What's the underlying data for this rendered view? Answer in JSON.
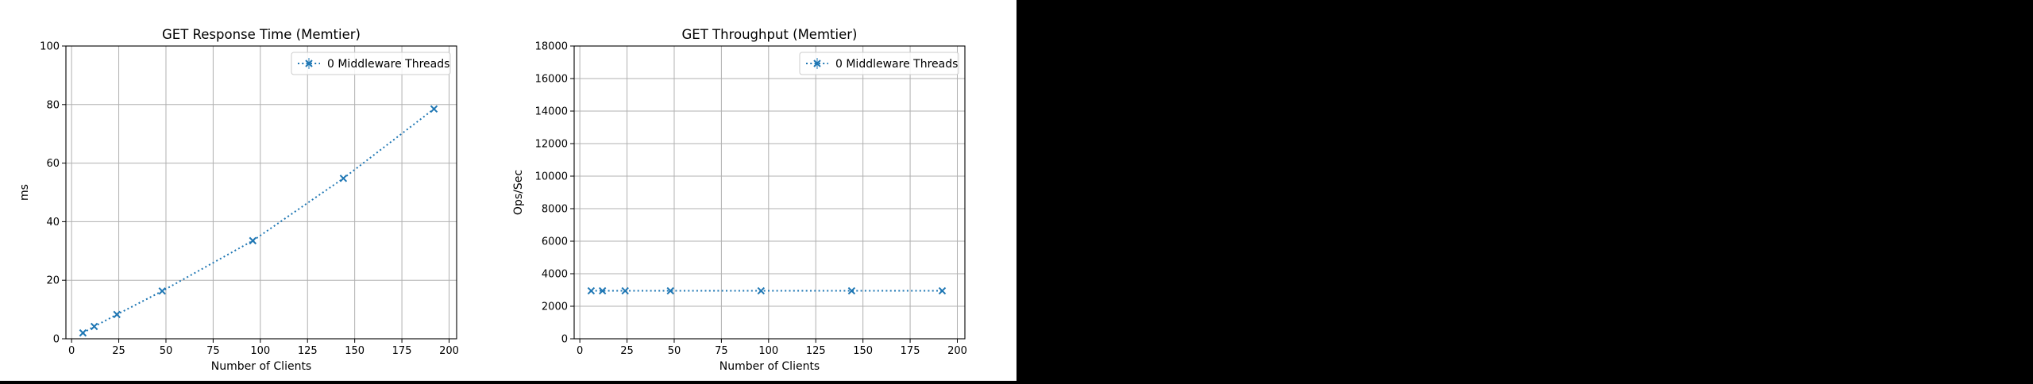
{
  "chart_data": [
    {
      "type": "line",
      "title": "GET Response Time (Memtier)",
      "xlabel": "Number of Clients",
      "ylabel": "ms",
      "xlim": [
        -3,
        204
      ],
      "ylim": [
        0,
        100
      ],
      "xticks": [
        0,
        25,
        50,
        75,
        100,
        125,
        150,
        175,
        200
      ],
      "yticks": [
        0,
        20,
        40,
        60,
        80,
        100
      ],
      "grid": true,
      "legend_position": "upper right",
      "series": [
        {
          "name": "0 Middleware Threads",
          "color": "#1f77b4",
          "marker": "x",
          "linestyle": "dotted",
          "x": [
            6,
            12,
            24,
            48,
            96,
            144,
            192
          ],
          "y": [
            2.0,
            4.2,
            8.3,
            16.3,
            33.5,
            54.8,
            78.5
          ]
        }
      ]
    },
    {
      "type": "line",
      "title": "GET Throughput (Memtier)",
      "xlabel": "Number of Clients",
      "ylabel": "Ops/Sec",
      "xlim": [
        -3,
        204
      ],
      "ylim": [
        0,
        18000
      ],
      "xticks": [
        0,
        25,
        50,
        75,
        100,
        125,
        150,
        175,
        200
      ],
      "yticks": [
        0,
        2000,
        4000,
        6000,
        8000,
        10000,
        12000,
        14000,
        16000,
        18000
      ],
      "grid": true,
      "legend_position": "upper right",
      "series": [
        {
          "name": "0 Middleware Threads",
          "color": "#1f77b4",
          "marker": "x",
          "linestyle": "dotted",
          "x": [
            6,
            12,
            24,
            48,
            96,
            144,
            192
          ],
          "y": [
            2950,
            2950,
            2950,
            2950,
            2950,
            2950,
            2950
          ]
        }
      ]
    }
  ]
}
